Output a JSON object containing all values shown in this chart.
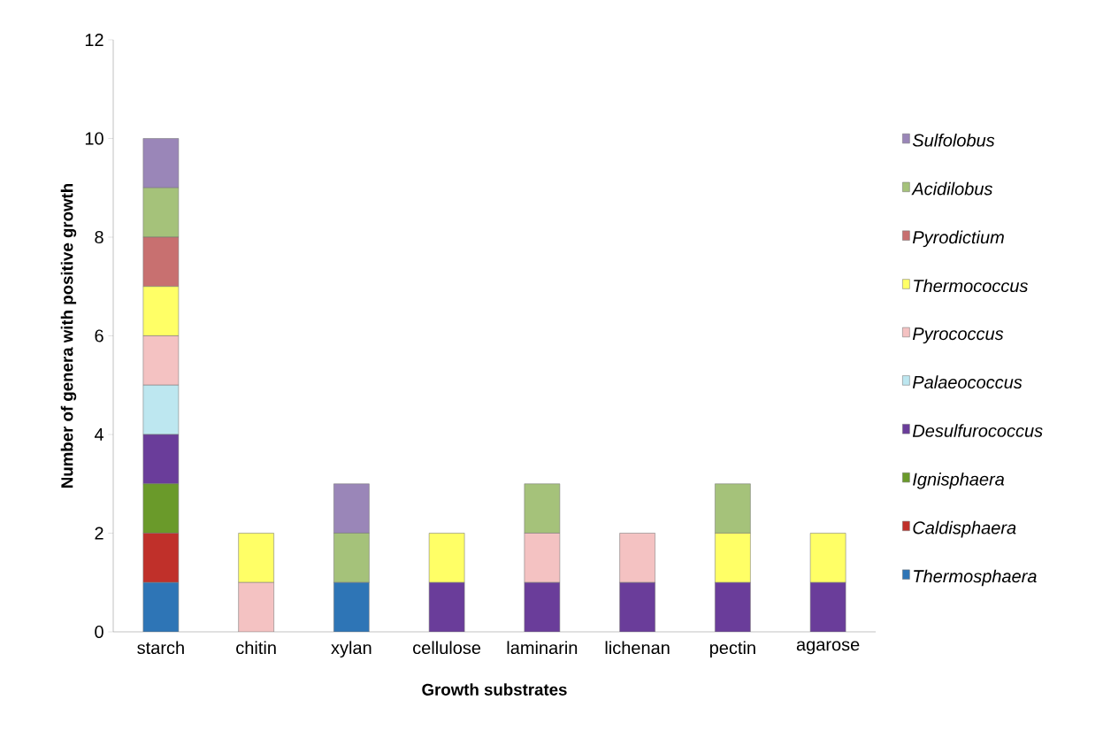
{
  "chart_data": {
    "type": "bar",
    "stacked": true,
    "xlabel": "Growth substrates",
    "ylabel": "Number of genera with positive growth",
    "categories": [
      "starch",
      "chitin",
      "xylan",
      "cellulose",
      "laminarin",
      "lichenan",
      "pectin",
      "agarose"
    ],
    "ylim": [
      0,
      12
    ],
    "yticks": [
      0,
      2,
      4,
      6,
      8,
      10,
      12
    ],
    "grid": false,
    "legend": "right",
    "series": [
      {
        "name": "Thermosphaera",
        "color": "#2e75b6",
        "values": [
          1,
          0,
          1,
          0,
          0,
          0,
          0,
          0
        ]
      },
      {
        "name": "Caldisphaera",
        "color": "#c0302a",
        "values": [
          1,
          0,
          0,
          0,
          0,
          0,
          0,
          0
        ]
      },
      {
        "name": "Ignisphaera",
        "color": "#6a9a2a",
        "values": [
          1,
          0,
          0,
          0,
          0,
          0,
          0,
          0
        ]
      },
      {
        "name": "Desulfurococcus",
        "color": "#6a3d9a",
        "values": [
          1,
          0,
          0,
          1,
          1,
          1,
          1,
          1
        ]
      },
      {
        "name": "Palaeococcus",
        "color": "#bde7f0",
        "values": [
          1,
          0,
          0,
          0,
          0,
          0,
          0,
          0
        ]
      },
      {
        "name": "Pyrococcus",
        "color": "#f4c2c2",
        "values": [
          1,
          1,
          0,
          0,
          1,
          1,
          0,
          0
        ]
      },
      {
        "name": "Thermococcus",
        "color": "#ffff66",
        "values": [
          1,
          1,
          0,
          1,
          0,
          0,
          1,
          1
        ]
      },
      {
        "name": "Pyrodictium",
        "color": "#c87070",
        "values": [
          1,
          0,
          0,
          0,
          0,
          0,
          0,
          0
        ]
      },
      {
        "name": "Acidilobus",
        "color": "#a5c27a",
        "values": [
          1,
          0,
          1,
          0,
          1,
          0,
          1,
          0
        ]
      },
      {
        "name": "Sulfolobus",
        "color": "#9a86b8",
        "values": [
          1,
          0,
          1,
          0,
          0,
          0,
          0,
          0
        ]
      }
    ]
  }
}
